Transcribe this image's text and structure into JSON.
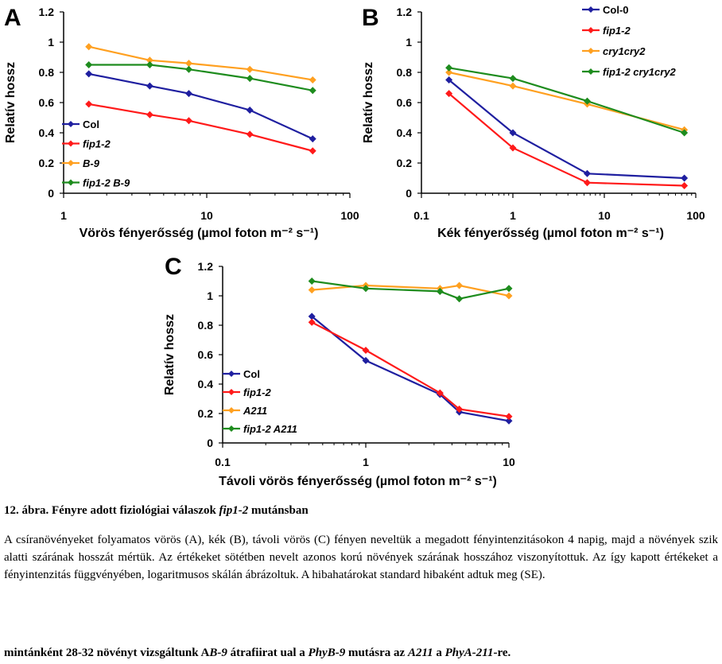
{
  "chart_data": [
    {
      "panel": "A",
      "type": "line",
      "xlabel": "Vörös fényerősség (µmol foton m⁻² s⁻¹)",
      "ylabel": "Relatív hossz",
      "xscale": "log",
      "xlim": [
        1,
        100
      ],
      "ylim": [
        0,
        1.2
      ],
      "xticks": [
        "1",
        "10",
        "100"
      ],
      "yticks": [
        "0",
        "0.2",
        "0.4",
        "0.6",
        "0.8",
        "1",
        "1.2"
      ],
      "legend_position": "lower-left",
      "series": [
        {
          "name": "Col",
          "color": "#1f1fa0",
          "x": [
            1.5,
            4,
            7.5,
            20,
            55
          ],
          "y": [
            0.79,
            0.71,
            0.66,
            0.55,
            0.36
          ]
        },
        {
          "name": "fip1-2",
          "color": "#ff1a1a",
          "x": [
            1.5,
            4,
            7.5,
            20,
            55
          ],
          "y": [
            0.59,
            0.52,
            0.48,
            0.39,
            0.28
          ]
        },
        {
          "name": "B-9",
          "color": "#ffa020",
          "x": [
            1.5,
            4,
            7.5,
            20,
            55
          ],
          "y": [
            0.97,
            0.88,
            0.86,
            0.82,
            0.75
          ]
        },
        {
          "name": "fip1-2 B-9",
          "color": "#1e8c1e",
          "x": [
            1.5,
            4,
            7.5,
            20,
            55
          ],
          "y": [
            0.85,
            0.85,
            0.82,
            0.76,
            0.68
          ]
        }
      ]
    },
    {
      "panel": "B",
      "type": "line",
      "xlabel": "Kék fényerősség (µmol foton m⁻² s⁻¹)",
      "ylabel": "Relatív hossz",
      "xscale": "log",
      "xlim": [
        0.1,
        100
      ],
      "ylim": [
        0,
        1.2
      ],
      "xticks": [
        "0.1",
        "1",
        "10",
        "100"
      ],
      "yticks": [
        "0",
        "0.2",
        "0.4",
        "0.6",
        "0.8",
        "1",
        "1.2"
      ],
      "legend_position": "top-right",
      "series": [
        {
          "name": "Col-0",
          "color": "#1f1fa0",
          "x": [
            0.2,
            1,
            6.5,
            75
          ],
          "y": [
            0.75,
            0.4,
            0.13,
            0.1
          ]
        },
        {
          "name": "fip1-2",
          "color": "#ff1a1a",
          "x": [
            0.2,
            1,
            6.5,
            75
          ],
          "y": [
            0.66,
            0.3,
            0.07,
            0.05
          ]
        },
        {
          "name": "cry1cry2",
          "color": "#ffa020",
          "x": [
            0.2,
            1,
            6.5,
            75
          ],
          "y": [
            0.8,
            0.71,
            0.59,
            0.42
          ]
        },
        {
          "name": "fip1-2 cry1cry2",
          "color": "#1e8c1e",
          "x": [
            0.2,
            1,
            6.5,
            75
          ],
          "y": [
            0.83,
            0.76,
            0.61,
            0.4
          ]
        }
      ]
    },
    {
      "panel": "C",
      "type": "line",
      "xlabel": "Távoli vörös fényerősség (µmol foton m⁻² s⁻¹)",
      "ylabel": "Relatív hossz",
      "xscale": "log",
      "xlim": [
        0.1,
        10
      ],
      "ylim": [
        0,
        1.2
      ],
      "xticks": [
        "0.1",
        "1",
        "10"
      ],
      "yticks": [
        "0",
        "0.2",
        "0.4",
        "0.6",
        "0.8",
        "1",
        "1.2"
      ],
      "legend_position": "lower-left",
      "series": [
        {
          "name": "Col",
          "color": "#1f1fa0",
          "x": [
            0.42,
            1,
            3.3,
            4.5,
            10
          ],
          "y": [
            0.86,
            0.56,
            0.33,
            0.21,
            0.15
          ]
        },
        {
          "name": "fip1-2",
          "color": "#ff1a1a",
          "x": [
            0.42,
            1,
            3.3,
            4.5,
            10
          ],
          "y": [
            0.82,
            0.63,
            0.34,
            0.23,
            0.18
          ]
        },
        {
          "name": "A211",
          "color": "#ffa020",
          "x": [
            0.42,
            1,
            3.3,
            4.5,
            10
          ],
          "y": [
            1.04,
            1.07,
            1.05,
            1.07,
            1.0
          ]
        },
        {
          "name": "fip1-2 A211",
          "color": "#1e8c1e",
          "x": [
            0.42,
            1,
            3.3,
            4.5,
            10
          ],
          "y": [
            1.1,
            1.05,
            1.03,
            0.98,
            1.05
          ]
        }
      ]
    }
  ],
  "caption": {
    "title_prefix": "12. ábra. Fényre adott fiziológiai válaszok",
    "title_italic": "fip1-2",
    "title_suffix": "mutánsban",
    "body": "A csíranövényeket folyamatos vörös (A), kék (B), távoli vörös (C) fényen neveltük a megadott fényintenzitásokon 4 napig, majd a növények szik alatti szárának hosszát mértük. Az értékeket sötétben nevelt azonos korú növények szárának hosszához viszonyítottuk. Az így kapott értékeket a fényintenzitás függvényében, logaritmusos skálán ábrázoltuk. A hibahatárokat standard hibaként adtuk meg (SE).",
    "last_a": "mintánként 28-32 növényt vizsgáltunk A",
    "last_b": "B-9",
    "last_c": "átrafiirat ual a",
    "last_d": "PhyB-9",
    "last_e": "mutásra az",
    "last_f": "A211",
    "last_g": "a",
    "last_h": "PhyA-211",
    "last_i": "-re."
  }
}
